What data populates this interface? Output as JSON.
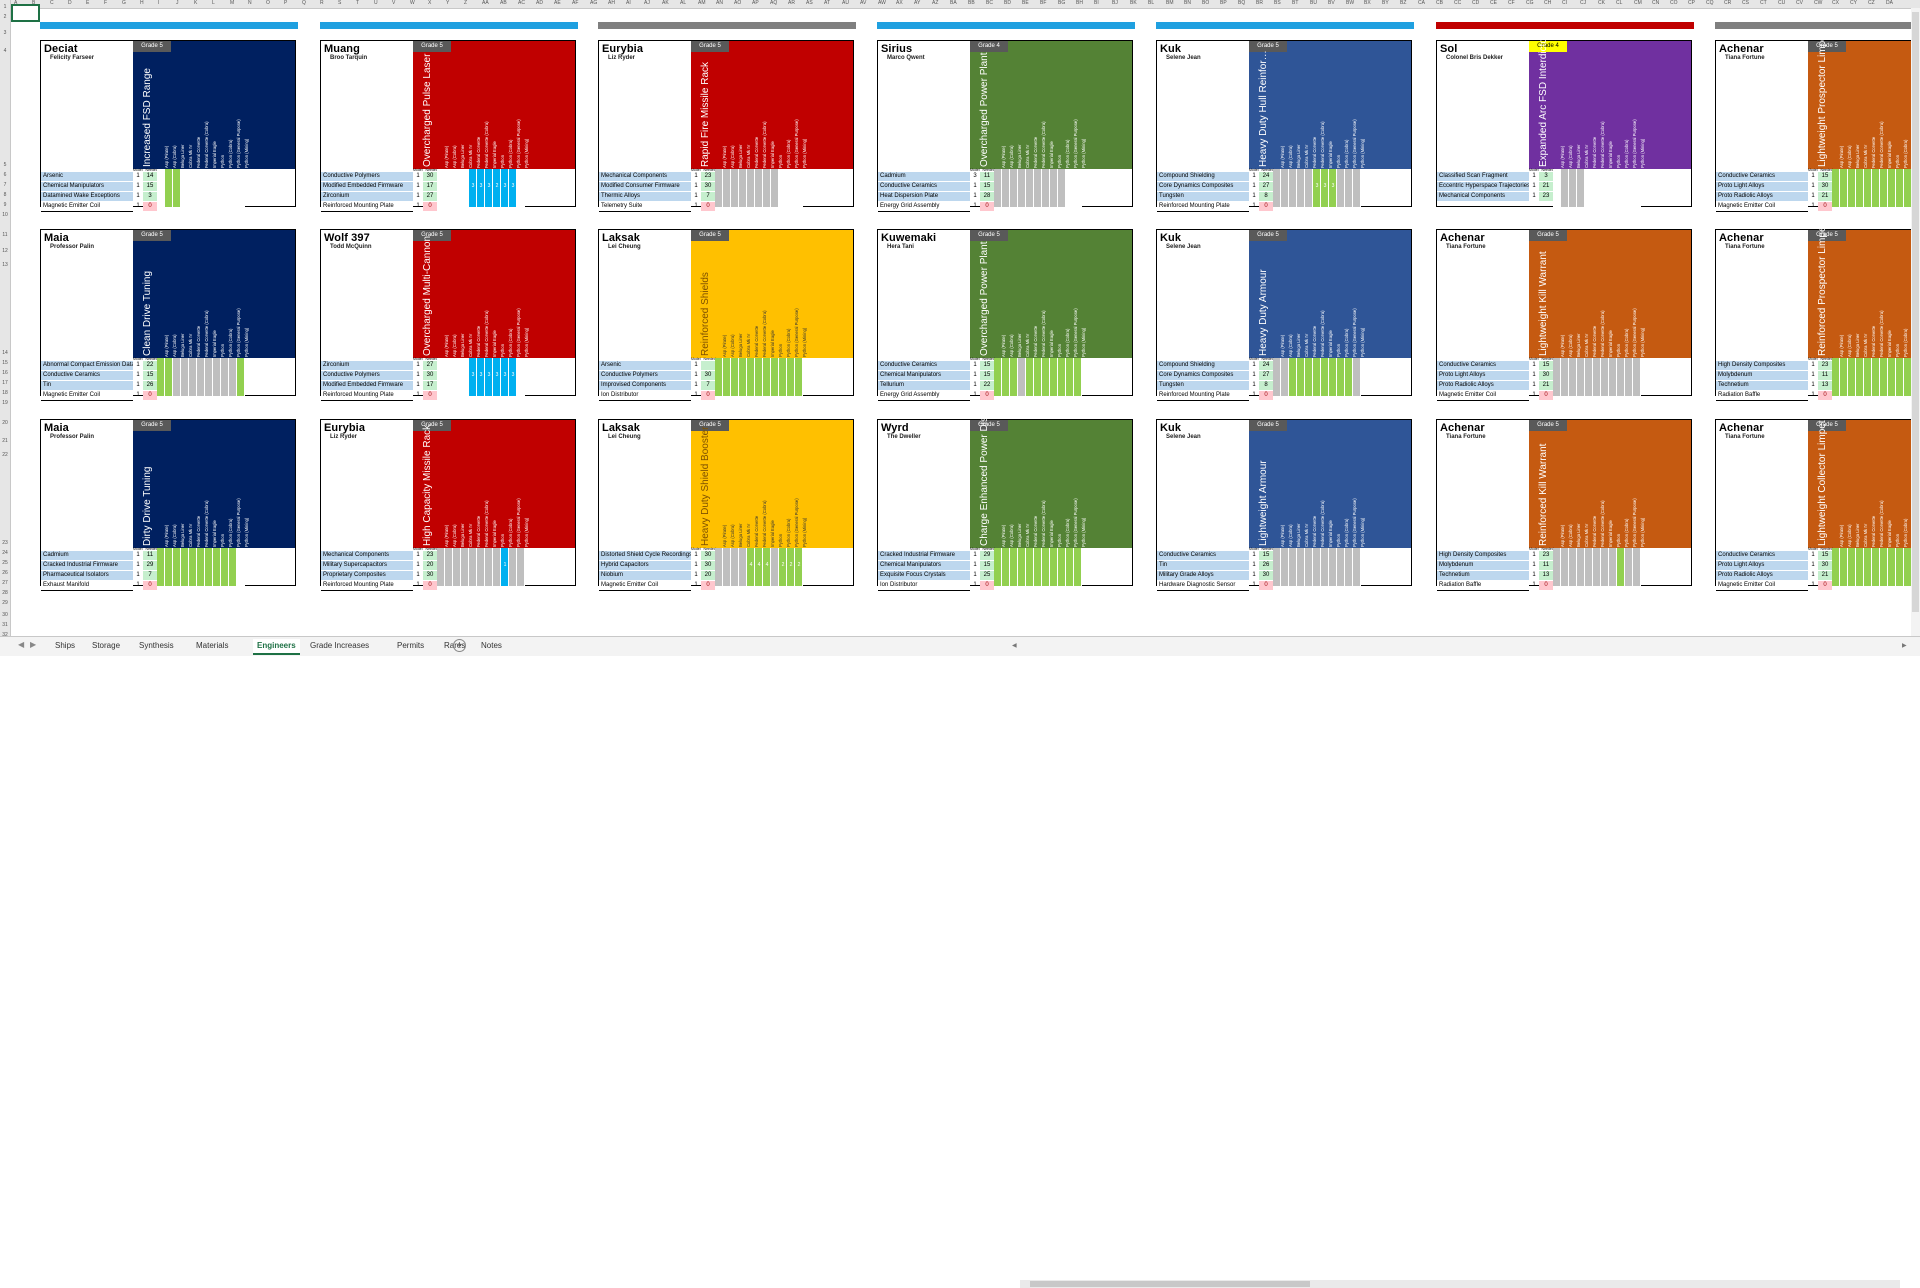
{
  "window": {
    "app": "Excel spreadsheet",
    "active_sheet": "Engineers"
  },
  "sheet_tabs": [
    "Ships",
    "Storage",
    "Synthesis",
    "Materials",
    "Engineers",
    "Grade Increases",
    "Permits",
    "Rares",
    "Notes"
  ],
  "active_tab_index": 4,
  "column_letters": [
    "A",
    "B",
    "C",
    "D",
    "E",
    "F",
    "G",
    "H",
    "I",
    "J",
    "K",
    "L",
    "M",
    "N",
    "O",
    "P",
    "Q",
    "R",
    "S",
    "T",
    "U",
    "V",
    "W",
    "X",
    "Y",
    "Z",
    "AA",
    "AB",
    "AC",
    "AD",
    "AE",
    "AF",
    "AG",
    "AH",
    "AI",
    "AJ",
    "AK",
    "AL",
    "AM",
    "AN",
    "AO",
    "AP",
    "AQ",
    "AR",
    "AS",
    "AT",
    "AU",
    "AV",
    "AW",
    "AX",
    "AY",
    "AZ",
    "BA",
    "BB",
    "BC",
    "BD",
    "BE",
    "BF",
    "BG",
    "BH",
    "BI",
    "BJ",
    "BK",
    "BL",
    "BM",
    "BN",
    "BO",
    "BP",
    "BQ",
    "BR",
    "BS",
    "BT",
    "BU",
    "BV",
    "BW",
    "BX",
    "BY",
    "BZ",
    "CA",
    "CB",
    "CC",
    "CD",
    "CE",
    "CF",
    "CG",
    "CH",
    "CI",
    "CJ",
    "CK",
    "CL",
    "CM",
    "CN",
    "CO",
    "CP",
    "CQ",
    "CR",
    "CS",
    "CT",
    "CU",
    "CV",
    "CW",
    "CX",
    "CY",
    "CZ",
    "DA"
  ],
  "row_numbers": [
    "1",
    "2",
    "3",
    "4",
    "5",
    "6",
    "7",
    "8",
    "9",
    "10",
    "11",
    "12",
    "13",
    "14",
    "15",
    "16",
    "17",
    "18",
    "19",
    "20",
    "21",
    "22",
    "23",
    "24",
    "25",
    "26",
    "27",
    "28",
    "29",
    "30",
    "31",
    "32",
    "33"
  ],
  "ship_columns": [
    "Asp (Pirate)",
    "Asp (Cobra)",
    "Beluga Liner",
    "Cobra Mk IV",
    "Federal Corvette",
    "Federal Corvette (Cobra)",
    "Imperial Eagle",
    "Python",
    "Python (Cobra)",
    "Python (General Purpose)",
    "Python (Mining)"
  ],
  "header_labels": {
    "model": "Model",
    "needed": "Needed"
  },
  "sections": [
    {
      "color": "#1fa0e0"
    },
    {
      "color": "#1fa0e0"
    },
    {
      "color": "#7f7f7f"
    },
    {
      "color": "#1fa0e0"
    },
    {
      "color": "#1fa0e0"
    },
    {
      "color": "#c00000"
    },
    {
      "color": "#7f7f7f"
    }
  ],
  "cards": [
    {
      "system": "Deciat",
      "engineer": "Felicity Farseer",
      "grade": "Grade 5",
      "grade_style": "dark",
      "mod": "Increased FSD Range",
      "color": "#002060",
      "materials": [
        "Arsenic",
        "Chemical Manipulators",
        "Datamined Wake Exceptions",
        "Magnetic Emitter Coil"
      ],
      "q": [
        "1",
        "1",
        "1",
        "1"
      ],
      "v": [
        "14",
        "15",
        "3",
        "0"
      ],
      "grid": [
        0,
        1,
        1,
        0,
        0,
        0,
        0,
        0,
        0,
        0,
        0
      ],
      "nums": []
    },
    {
      "system": "Muang",
      "engineer": "Broo Tarquin",
      "grade": "Grade 5",
      "grade_style": "dark",
      "mod": "Overcharged Pulse Laser",
      "color": "#c00000",
      "materials": [
        "Conductive Polymers",
        "Modified Embedded Firmware",
        "Zirconium",
        "Reinforced Mounting Plate"
      ],
      "q": [
        "1",
        "1",
        "1",
        "1"
      ],
      "v": [
        "30",
        "17",
        "27",
        "0"
      ],
      "grid": [
        0,
        0,
        0,
        0,
        2,
        2,
        2,
        2,
        2,
        2,
        0
      ],
      "nums": [
        "",
        "",
        "",
        "",
        "3",
        "3",
        "3",
        "2",
        "3",
        "3",
        ""
      ]
    },
    {
      "system": "Eurybia",
      "engineer": "Liz Ryder",
      "grade": "Grade 5",
      "grade_style": "dark",
      "mod": "Rapid Fire Missile Rack",
      "color": "#c00000",
      "materials": [
        "Mechanical Components",
        "Modified Consumer Firmware",
        "Thermic Alloys",
        "Telemetry Suite"
      ],
      "q": [
        "1",
        "1",
        "1",
        "1"
      ],
      "v": [
        "23",
        "30",
        "7",
        "0"
      ],
      "grid": [
        3,
        3,
        3,
        3,
        3,
        3,
        3,
        3,
        0,
        0,
        0
      ],
      "nums": []
    },
    {
      "system": "Sirius",
      "engineer": "Marco Qwent",
      "grade": "Grade 4",
      "grade_style": "dark",
      "mod": "Overcharged Power Plant",
      "color": "#548235",
      "materials": [
        "Cadmium",
        "Conductive Ceramics",
        "Heat Dispersion Plate",
        "Energy Grid Assembly"
      ],
      "q": [
        "3",
        "1",
        "1",
        "1"
      ],
      "v": [
        "11",
        "15",
        "28",
        "0"
      ],
      "grid": [
        3,
        3,
        3,
        3,
        3,
        3,
        3,
        3,
        3,
        0,
        0
      ],
      "nums": []
    },
    {
      "system": "Kuk",
      "engineer": "Selene Jean",
      "grade": "Grade 5",
      "grade_style": "dark",
      "mod": "Heavy Duty Hull Reinfor…",
      "color": "#2f5597",
      "materials": [
        "Compound Shielding",
        "Core Dynamics Composites",
        "Tungsten",
        "Reinforced Mounting Plate"
      ],
      "q": [
        "1",
        "1",
        "1",
        "1"
      ],
      "v": [
        "24",
        "27",
        "8",
        "0"
      ],
      "grid": [
        3,
        3,
        3,
        3,
        3,
        1,
        1,
        1,
        3,
        3,
        3
      ],
      "nums": [
        "",
        "",
        "",
        "",
        "",
        "3",
        "3",
        "3",
        "",
        "",
        ""
      ]
    },
    {
      "system": "Sol",
      "engineer": "Colonel Bris Dekker",
      "grade": "Grade 4",
      "grade_style": "yellow",
      "mod": "Expanded Arc FSD Interdictor",
      "color": "#7030a0",
      "materials": [
        "Classified Scan Fragment",
        "Eccentric Hyperspace Trajectories",
        "Mechanical Components"
      ],
      "q": [
        "1",
        "1",
        "1"
      ],
      "v": [
        "3",
        "21",
        "23"
      ],
      "grid": [
        0,
        3,
        3,
        3,
        0,
        0,
        0,
        0,
        0,
        0,
        0
      ],
      "nums": []
    },
    {
      "system": "Achenar",
      "engineer": "Tiana Fortune",
      "grade": "Grade 5",
      "grade_style": "dark",
      "mod": "Lightweight Prospector Limpet",
      "color": "#c55a11",
      "materials": [
        "Conductive Ceramics",
        "Proto Light Alloys",
        "Proto Radiolic Alloys",
        "Magnetic Emitter Coil"
      ],
      "q": [
        "1",
        "1",
        "1",
        "1"
      ],
      "v": [
        "15",
        "30",
        "21",
        "0"
      ],
      "grid": [
        1,
        1,
        1,
        1,
        1,
        1,
        1,
        1,
        1,
        1,
        1
      ],
      "nums": []
    },
    {
      "system": "Maia",
      "engineer": "Professor Palin",
      "grade": "Grade 5",
      "grade_style": "dark",
      "mod": "Clean Drive Tuning",
      "color": "#002060",
      "materials": [
        "Abnormal Compact Emission Data",
        "Conductive Ceramics",
        "Tin",
        "Magnetic Emitter Coil"
      ],
      "q": [
        "1",
        "1",
        "1",
        "1"
      ],
      "v": [
        "22",
        "15",
        "26",
        "0"
      ],
      "grid": [
        1,
        1,
        3,
        3,
        3,
        3,
        3,
        3,
        3,
        3,
        1
      ],
      "nums": []
    },
    {
      "system": "Wolf 397",
      "engineer": "Todd McQuinn",
      "grade": "Grade 5",
      "grade_style": "dark",
      "mod": "Overcharged Multi-Cannon",
      "color": "#c00000",
      "materials": [
        "Zirconium",
        "Conductive Polymers",
        "Modified Embedded Firmware",
        "Reinforced Mounting Plate"
      ],
      "q": [
        "1",
        "1",
        "1",
        "1"
      ],
      "v": [
        "27",
        "30",
        "17",
        "0"
      ],
      "grid": [
        0,
        0,
        0,
        0,
        2,
        2,
        2,
        2,
        2,
        2,
        0
      ],
      "nums": [
        "",
        "",
        "",
        "",
        "3",
        "3",
        "3",
        "3",
        "3",
        "3",
        ""
      ]
    },
    {
      "system": "Laksak",
      "engineer": "Lei Cheung",
      "grade": "Grade 5",
      "grade_style": "dark",
      "mod": "Reinforced Shields",
      "color": "#ffc000",
      "materials": [
        "Arsenic",
        "Conductive Polymers",
        "Improvised Components",
        "Ion Distributor"
      ],
      "q": [
        "1",
        "1",
        "1",
        "1"
      ],
      "v": [
        "",
        "30",
        "7",
        "0"
      ],
      "grid": [
        1,
        1,
        1,
        1,
        1,
        1,
        1,
        1,
        1,
        1,
        1
      ],
      "nums": []
    },
    {
      "system": "Kuwemaki",
      "engineer": "Hera Tani",
      "grade": "Grade 5",
      "grade_style": "dark",
      "mod": "Overcharged Power Plant",
      "color": "#548235",
      "materials": [
        "Conductive Ceramics",
        "Chemical Manipulators",
        "Tellurium",
        "Energy Grid Assembly"
      ],
      "q": [
        "1",
        "1",
        "1",
        "1"
      ],
      "v": [
        "15",
        "15",
        "22",
        "0"
      ],
      "grid": [
        1,
        1,
        1,
        3,
        1,
        1,
        1,
        1,
        1,
        1,
        1
      ],
      "nums": []
    },
    {
      "system": "Kuk",
      "engineer": "Selene Jean",
      "grade": "Grade 5",
      "grade_style": "dark",
      "mod": "Heavy Duty Armour",
      "color": "#2f5597",
      "materials": [
        "Compound Shielding",
        "Core Dynamics Composites",
        "Tungsten",
        "Reinforced Mounting Plate"
      ],
      "q": [
        "1",
        "1",
        "1",
        "1"
      ],
      "v": [
        "24",
        "27",
        "8",
        "0"
      ],
      "grid": [
        3,
        3,
        1,
        1,
        1,
        1,
        1,
        1,
        1,
        1,
        3
      ],
      "nums": []
    },
    {
      "system": "Achenar",
      "engineer": "Tiana Fortune",
      "grade": "Grade 5",
      "grade_style": "dark",
      "mod": "Lightweight Kill Warrant",
      "color": "#c55a11",
      "materials": [
        "Conductive Ceramics",
        "Proto Light Alloys",
        "Proto Radiolic Alloys",
        "Magnetic Emitter Coil"
      ],
      "q": [
        "1",
        "1",
        "1",
        "1"
      ],
      "v": [
        "15",
        "30",
        "21",
        "0"
      ],
      "grid": [
        3,
        3,
        3,
        3,
        3,
        3,
        3,
        3,
        3,
        3,
        3
      ],
      "nums": []
    },
    {
      "system": "Achenar",
      "engineer": "Tiana Fortune",
      "grade": "Grade 5",
      "grade_style": "dark",
      "mod": "Reinforced Prospector Limpet",
      "color": "#c55a11",
      "materials": [
        "High Density Composites",
        "Molybdenum",
        "Technetium",
        "Radiation Baffle"
      ],
      "q": [
        "1",
        "1",
        "1",
        "1"
      ],
      "v": [
        "23",
        "11",
        "13",
        "0"
      ],
      "grid": [
        1,
        1,
        1,
        1,
        1,
        1,
        1,
        1,
        1,
        1,
        1
      ],
      "nums": []
    },
    {
      "system": "Maia",
      "engineer": "Professor Palin",
      "grade": "Grade 5",
      "grade_style": "dark",
      "mod": "Dirty Drive Tuning",
      "color": "#002060",
      "materials": [
        "Cadmium",
        "Cracked Industrial Firmware",
        "Pharmaceutical Isolators",
        "Exhaust Manifold"
      ],
      "q": [
        "1",
        "1",
        "1",
        "1"
      ],
      "v": [
        "11",
        "29",
        "7",
        "0"
      ],
      "grid": [
        1,
        1,
        1,
        1,
        1,
        1,
        1,
        1,
        1,
        1,
        0
      ],
      "nums": []
    },
    {
      "system": "Eurybia",
      "engineer": "Liz Ryder",
      "grade": "Grade 5",
      "grade_style": "dark",
      "mod": "High Capacity Missile Rack",
      "color": "#c00000",
      "materials": [
        "Mechanical Components",
        "Military Supercapacitors",
        "Proprietary Composites",
        "Reinforced Mounting Plate"
      ],
      "q": [
        "1",
        "1",
        "1",
        "1"
      ],
      "v": [
        "23",
        "20",
        "30",
        "0"
      ],
      "grid": [
        3,
        3,
        3,
        3,
        3,
        3,
        3,
        3,
        2,
        3,
        3
      ],
      "nums": [
        "",
        "",
        "",
        "",
        "",
        "",
        "",
        "",
        "1",
        "",
        ""
      ]
    },
    {
      "system": "Laksak",
      "engineer": "Lei Cheung",
      "grade": "Grade 5",
      "grade_style": "dark",
      "mod": "Heavy Duty Shield Booster",
      "color": "#ffc000",
      "materials": [
        "Distorted Shield Cycle Recordings",
        "Hybrid Capacitors",
        "Niobium",
        "Magnetic Emitter Coil"
      ],
      "q": [
        "1",
        "1",
        "1",
        "1"
      ],
      "v": [
        "30",
        "30",
        "20",
        "0"
      ],
      "grid": [
        3,
        3,
        3,
        3,
        1,
        1,
        1,
        3,
        1,
        1,
        1
      ],
      "nums": [
        "",
        "",
        "",
        "",
        "4",
        "4",
        "4",
        "",
        "2",
        "2",
        "2"
      ]
    },
    {
      "system": "Wyrd",
      "engineer": "The Dweller",
      "grade": "Grade 5",
      "grade_style": "dark",
      "mod": "Charge Enhanced Power Dis…",
      "color": "#548235",
      "materials": [
        "Cracked Industrial Firmware",
        "Chemical Manipulators",
        "Exquisite Focus Crystals",
        "Ion Distributor"
      ],
      "q": [
        "1",
        "1",
        "1",
        "1"
      ],
      "v": [
        "29",
        "15",
        "25",
        "0"
      ],
      "grid": [
        1,
        1,
        1,
        1,
        1,
        1,
        1,
        1,
        1,
        1,
        1
      ],
      "nums": []
    },
    {
      "system": "Kuk",
      "engineer": "Selene Jean",
      "grade": "Grade 5",
      "grade_style": "dark",
      "mod": "Lightweight Armour",
      "color": "#2f5597",
      "materials": [
        "Conductive Ceramics",
        "Tin",
        "Military Grade Alloys",
        "Hardware Diagnostic Sensor"
      ],
      "q": [
        "1",
        "1",
        "1",
        "1"
      ],
      "v": [
        "15",
        "26",
        "30",
        "0"
      ],
      "grid": [
        3,
        3,
        3,
        3,
        3,
        3,
        3,
        3,
        3,
        3,
        3
      ],
      "nums": []
    },
    {
      "system": "Achenar",
      "engineer": "Tiana Fortune",
      "grade": "Grade 5",
      "grade_style": "dark",
      "mod": "Reinforced Kill Warrant",
      "color": "#c55a11",
      "materials": [
        "High Density Composites",
        "Molybdenum",
        "Technetium",
        "Radiation Baffle"
      ],
      "q": [
        "1",
        "1",
        "1",
        "1"
      ],
      "v": [
        "23",
        "11",
        "13",
        "0"
      ],
      "grid": [
        3,
        3,
        3,
        3,
        3,
        3,
        3,
        3,
        1,
        3,
        3
      ],
      "nums": []
    },
    {
      "system": "Achenar",
      "engineer": "Tiana Fortune",
      "grade": "Grade 5",
      "grade_style": "dark",
      "mod": "Lightweight Collector Limpet",
      "color": "#c55a11",
      "materials": [
        "Conductive Ceramics",
        "Proto Light Alloys",
        "Proto Radiolic Alloys",
        "Magnetic Emitter Coil"
      ],
      "q": [
        "1",
        "1",
        "1",
        "1"
      ],
      "v": [
        "15",
        "30",
        "21",
        "0"
      ],
      "grid": [
        1,
        1,
        1,
        1,
        1,
        1,
        1,
        1,
        1,
        1,
        1
      ],
      "nums": []
    }
  ],
  "grid_colors": {
    "0": "#ffffff",
    "1": "#92d050",
    "2": "#00b0f0",
    "3": "#bfbfbf"
  }
}
